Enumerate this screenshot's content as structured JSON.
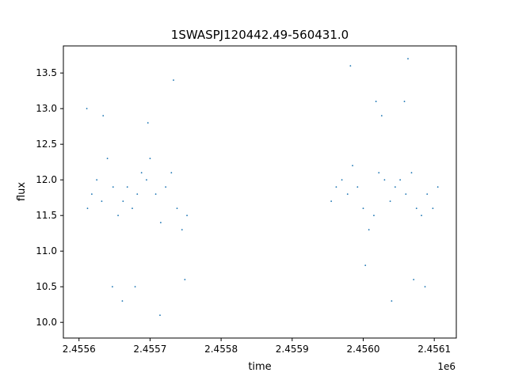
{
  "chart_data": {
    "type": "scatter",
    "title": "1SWASPJ120442.49-560431.0",
    "xlabel": "time",
    "ylabel": "flux",
    "x_offset_label": "1e6",
    "xlim": [
      2455578,
      2456131
    ],
    "ylim": [
      9.78,
      13.88
    ],
    "x_ticks": [
      2455600,
      2455700,
      2455800,
      2455900,
      2456000,
      2456100
    ],
    "x_tick_labels": [
      "2.4556",
      "2.4557",
      "2.4558",
      "2.4559",
      "2.4560",
      "2.4561"
    ],
    "y_ticks": [
      10.0,
      10.5,
      11.0,
      11.5,
      12.0,
      12.5,
      13.0,
      13.5
    ],
    "y_tick_labels": [
      "10.0",
      "10.5",
      "11.0",
      "11.5",
      "12.0",
      "12.5",
      "13.0",
      "13.5"
    ],
    "grid": false,
    "marker_color": "#1f77b4",
    "series": [
      {
        "x": [
          2455612,
          2455618,
          2455625,
          2455632,
          2455640,
          2455648,
          2455655,
          2455662,
          2455668,
          2455675,
          2455682,
          2455688,
          2455695,
          2455700,
          2455708,
          2455715,
          2455722,
          2455730,
          2455738,
          2455745,
          2455752,
          2455611,
          2455634,
          2455647,
          2455661,
          2455679,
          2455697,
          2455714,
          2455733,
          2455749
        ],
        "y": [
          11.6,
          11.8,
          12.0,
          11.7,
          12.3,
          11.9,
          11.5,
          11.7,
          11.9,
          11.6,
          11.8,
          12.1,
          12.0,
          12.3,
          11.8,
          11.4,
          11.9,
          12.1,
          11.6,
          11.3,
          11.5,
          13.0,
          12.9,
          10.5,
          10.3,
          10.5,
          12.8,
          10.1,
          13.4,
          10.6
        ]
      },
      {
        "x": [
          2455955,
          2455962,
          2455970,
          2455978,
          2455985,
          2455992,
          2456000,
          2456008,
          2456015,
          2456022,
          2456030,
          2456038,
          2456045,
          2456052,
          2456060,
          2456068,
          2456075,
          2456082,
          2456090,
          2456098,
          2456105,
          2455982,
          2456003,
          2456018,
          2456040,
          2456063,
          2456087,
          2456026,
          2456071,
          2456058
        ],
        "y": [
          11.7,
          11.9,
          12.0,
          11.8,
          12.2,
          11.9,
          11.6,
          11.3,
          11.5,
          12.1,
          12.0,
          11.7,
          11.9,
          12.0,
          11.8,
          12.1,
          11.6,
          11.5,
          11.8,
          11.6,
          11.9,
          13.6,
          10.8,
          13.1,
          10.3,
          13.7,
          10.5,
          12.9,
          10.6,
          13.1
        ]
      }
    ]
  }
}
